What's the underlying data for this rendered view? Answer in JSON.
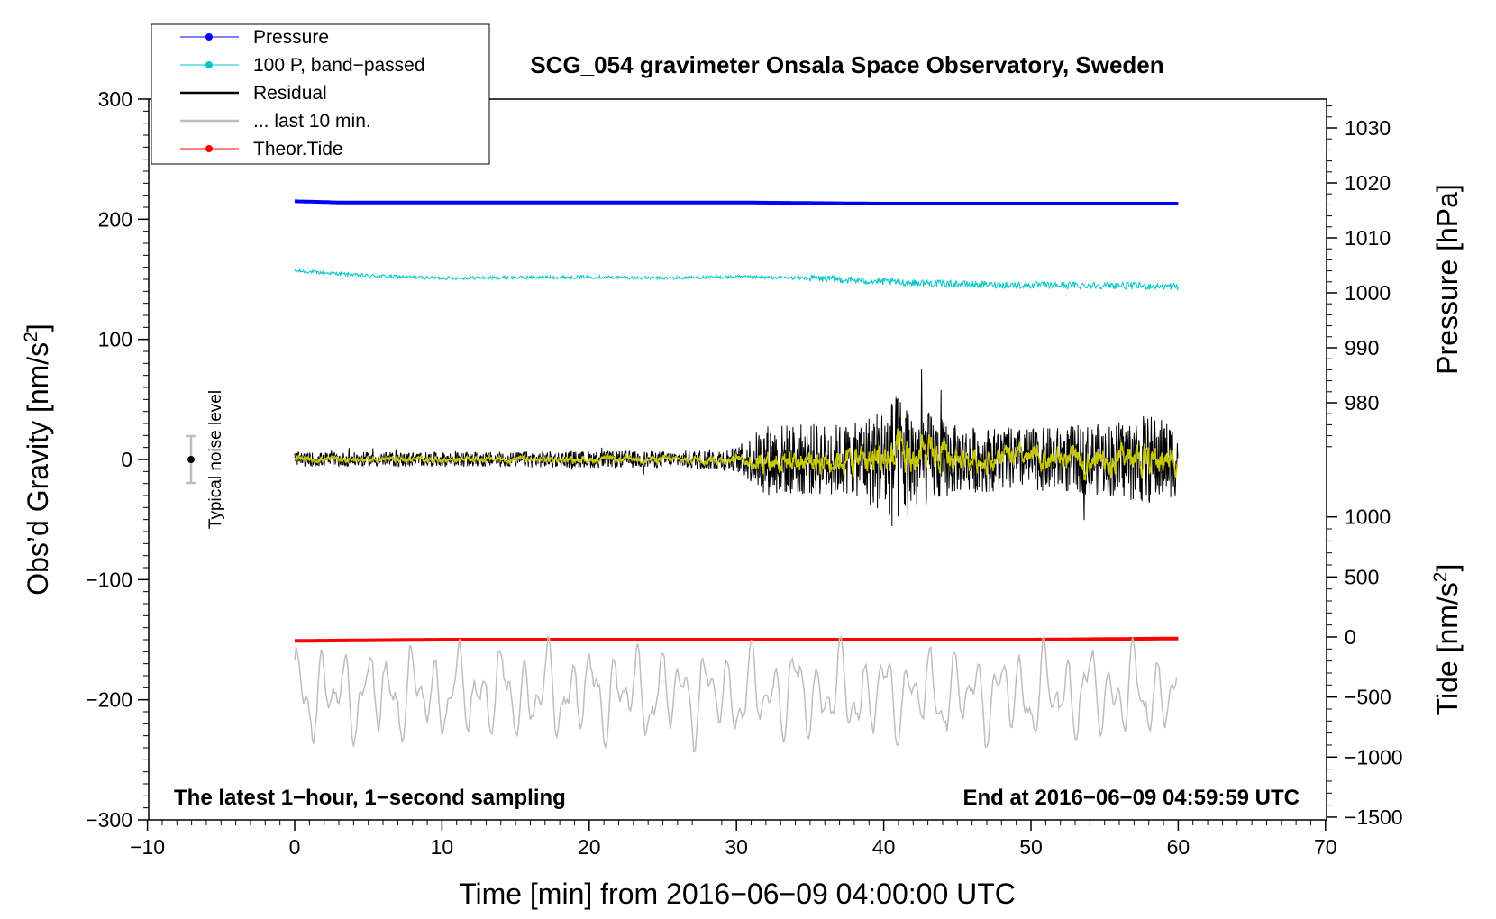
{
  "chart_data": {
    "type": "line",
    "title": "SCG_054 gravimeter Onsala Space Observatory, Sweden",
    "xlabel": "Time [min] from 2016−06−09 04:00:00 UTC",
    "ylabel_left": "Obs’d Gravity [nm/s",
    "ylabel_left_sup": "2",
    "ylabel_left_end": "]",
    "ylabel_right_pressure": "Pressure [hPa]",
    "ylabel_right_tide": "Tide [nm/s",
    "ylabel_right_tide_sup": "2",
    "ylabel_right_tide_end": "]",
    "xlim": [
      -10,
      70
    ],
    "ylim_left": [
      -300,
      300
    ],
    "x_ticks": [
      "−10",
      "0",
      "10",
      "20",
      "30",
      "40",
      "50",
      "60",
      "70"
    ],
    "y_left_ticks": [
      "300",
      "200",
      "100",
      "0",
      "−100",
      "−200",
      "−300"
    ],
    "pressure_ticks": [
      "1030",
      "1020",
      "1010",
      "1000",
      "990",
      "980"
    ],
    "pressure_tick_values": [
      1030,
      1020,
      1010,
      1000,
      990,
      980
    ],
    "tide_ticks": [
      "1000",
      "500",
      "0",
      "−500",
      "−1000",
      "−1500"
    ],
    "tide_tick_values": [
      1000,
      500,
      0,
      -500,
      -1000,
      -1500
    ],
    "note_left": "The latest 1−hour, 1−second sampling",
    "note_right": "End at 2016−06−09 04:59:59 UTC",
    "noise_label": "Typical noise level",
    "noise_range": [
      -20,
      20
    ],
    "legend": [
      {
        "label": "Pressure",
        "color": "#0000ff",
        "marker": true
      },
      {
        "label": "100 P, band−passed",
        "color": "#00c8c8",
        "marker": true
      },
      {
        "label": "Residual",
        "color": "#000000",
        "marker": false
      },
      {
        "label": "... last 10 min.",
        "color": "#bebebe",
        "marker": false
      },
      {
        "label": "Theor.Tide",
        "color": "#ff0000",
        "marker": true
      }
    ],
    "series": [
      {
        "name": "Pressure",
        "color": "#0000ff",
        "x": [
          0,
          3,
          10,
          20,
          30,
          40,
          50,
          60
        ],
        "y": [
          215,
          214,
          214,
          214,
          214,
          213,
          213,
          213
        ]
      },
      {
        "name": "100 P, band−passed",
        "color": "#00c8c8",
        "x": [
          0,
          5,
          10,
          20,
          25,
          30,
          35,
          40,
          45,
          50,
          55,
          60
        ],
        "y": [
          157,
          153,
          151,
          152,
          151,
          152,
          151,
          148,
          146,
          145,
          145,
          144
        ]
      },
      {
        "name": "Residual",
        "color": "#000000",
        "envelope": {
          "x": [
            0,
            10,
            20,
            26,
            30,
            32,
            35,
            38,
            41,
            43,
            45,
            50,
            55,
            58,
            60
          ],
          "amp": [
            6,
            6,
            7,
            7,
            10,
            30,
            30,
            30,
            55,
            40,
            28,
            26,
            30,
            38,
            30
          ]
        }
      },
      {
        "name": "Theor.Tide",
        "color": "#ff0000",
        "x": [
          0,
          10,
          20,
          30,
          40,
          50,
          60
        ],
        "y": [
          -151,
          -150,
          -150,
          -150,
          -150,
          -150,
          -149
        ]
      },
      {
        "name": "... last 10 min.",
        "color": "#bebebe",
        "x_range": [
          0,
          60
        ],
        "y_center": -195,
        "amplitude": 40
      }
    ]
  }
}
